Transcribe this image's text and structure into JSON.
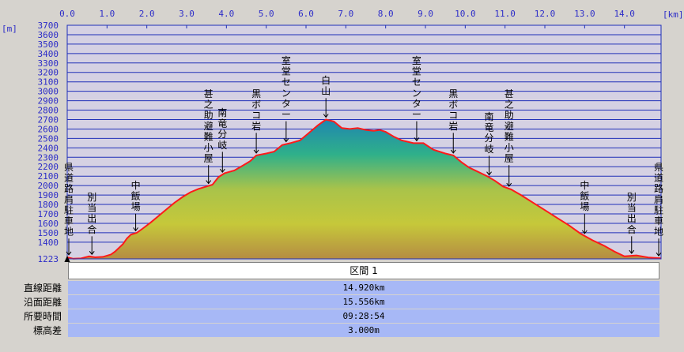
{
  "chart_data": {
    "type": "area",
    "x_unit": "[km]",
    "y_unit": "[m]",
    "xlim": [
      0,
      14.92
    ],
    "ylim": [
      1223,
      3700
    ],
    "x_ticks": [
      0.0,
      1.0,
      2.0,
      3.0,
      4.0,
      5.0,
      6.0,
      7.0,
      8.0,
      9.0,
      10.0,
      11.0,
      12.0,
      13.0,
      14.0
    ],
    "x_tick_labels": [
      "0.0",
      "1.0",
      "2.0",
      "3.0",
      "4.0",
      "5.0",
      "6.0",
      "7.0",
      "8.0",
      "9.0",
      "10.0",
      "11.0",
      "12.0",
      "13.0",
      "14.0"
    ],
    "y_ticks": [
      1223,
      1400,
      1500,
      1600,
      1700,
      1800,
      1900,
      2000,
      2100,
      2200,
      2300,
      2400,
      2500,
      2600,
      2700,
      2800,
      2900,
      3000,
      3100,
      3200,
      3300,
      3400,
      3500,
      3600,
      3700
    ],
    "y_tick_labels": [
      "1223",
      "1400",
      "1500",
      "1600",
      "1700",
      "1800",
      "1900",
      "2000",
      "2100",
      "2200",
      "2300",
      "2400",
      "2500",
      "2600",
      "2700",
      "2800",
      "2900",
      "3000",
      "3100",
      "3200",
      "3300",
      "3400",
      "3500",
      "3600",
      "3700"
    ],
    "grid": true,
    "profile": [
      [
        0.0,
        1240
      ],
      [
        0.15,
        1225
      ],
      [
        0.35,
        1228
      ],
      [
        0.55,
        1250
      ],
      [
        0.7,
        1240
      ],
      [
        0.9,
        1245
      ],
      [
        1.1,
        1270
      ],
      [
        1.2,
        1300
      ],
      [
        1.4,
        1380
      ],
      [
        1.5,
        1440
      ],
      [
        1.6,
        1480
      ],
      [
        1.75,
        1500
      ],
      [
        1.9,
        1545
      ],
      [
        2.1,
        1610
      ],
      [
        2.3,
        1680
      ],
      [
        2.5,
        1750
      ],
      [
        2.7,
        1820
      ],
      [
        2.9,
        1880
      ],
      [
        3.1,
        1930
      ],
      [
        3.3,
        1965
      ],
      [
        3.5,
        1990
      ],
      [
        3.65,
        2010
      ],
      [
        3.8,
        2090
      ],
      [
        3.95,
        2130
      ],
      [
        4.2,
        2160
      ],
      [
        4.4,
        2210
      ],
      [
        4.6,
        2260
      ],
      [
        4.75,
        2320
      ],
      [
        5.0,
        2340
      ],
      [
        5.2,
        2360
      ],
      [
        5.4,
        2430
      ],
      [
        5.6,
        2450
      ],
      [
        5.85,
        2480
      ],
      [
        6.05,
        2550
      ],
      [
        6.3,
        2640
      ],
      [
        6.5,
        2700
      ],
      [
        6.7,
        2680
      ],
      [
        6.9,
        2610
      ],
      [
        7.1,
        2600
      ],
      [
        7.3,
        2610
      ],
      [
        7.5,
        2590
      ],
      [
        7.7,
        2580
      ],
      [
        7.85,
        2590
      ],
      [
        8.0,
        2570
      ],
      [
        8.2,
        2520
      ],
      [
        8.4,
        2480
      ],
      [
        8.7,
        2450
      ],
      [
        8.95,
        2450
      ],
      [
        9.2,
        2380
      ],
      [
        9.5,
        2340
      ],
      [
        9.7,
        2320
      ],
      [
        9.9,
        2250
      ],
      [
        10.1,
        2190
      ],
      [
        10.3,
        2150
      ],
      [
        10.55,
        2100
      ],
      [
        10.75,
        2050
      ],
      [
        10.95,
        1990
      ],
      [
        11.15,
        1960
      ],
      [
        11.4,
        1900
      ],
      [
        11.7,
        1820
      ],
      [
        12.0,
        1740
      ],
      [
        12.3,
        1660
      ],
      [
        12.6,
        1580
      ],
      [
        12.9,
        1490
      ],
      [
        13.2,
        1420
      ],
      [
        13.5,
        1360
      ],
      [
        13.75,
        1300
      ],
      [
        14.0,
        1250
      ],
      [
        14.3,
        1260
      ],
      [
        14.6,
        1238
      ],
      [
        14.92,
        1230
      ]
    ],
    "annotations": [
      {
        "x": 0.0,
        "text": "県道路肩駐車地",
        "label_top": 205
      },
      {
        "x": 0.62,
        "text": "別当出合",
        "label_top": 243
      },
      {
        "x": 1.72,
        "text": "中飯場",
        "label_top": 228
      },
      {
        "x": 3.55,
        "text": "甚之助避難小屋",
        "label_top": 112
      },
      {
        "x": 3.9,
        "text": "南竜分岐",
        "label_top": 136
      },
      {
        "x": 4.75,
        "text": "黒ボコ岩",
        "label_top": 112
      },
      {
        "x": 5.5,
        "text": "室堂センター",
        "label_top": 70
      },
      {
        "x": 6.5,
        "text": "白山",
        "label_top": 95
      },
      {
        "x": 8.78,
        "text": "室堂センター",
        "label_top": 70
      },
      {
        "x": 9.7,
        "text": "黒ボコ岩",
        "label_top": 112
      },
      {
        "x": 10.6,
        "text": "南竜分岐",
        "label_top": 141
      },
      {
        "x": 11.1,
        "text": "甚之助避難小屋",
        "label_top": 112
      },
      {
        "x": 13.0,
        "text": "中飯場",
        "label_top": 228
      },
      {
        "x": 14.18,
        "text": "別当出合",
        "label_top": 243
      },
      {
        "x": 14.92,
        "text": "県道路肩駐車地",
        "label_top": 205
      }
    ],
    "colors": {
      "background": "#d6d3ce",
      "plot": "#d5d1e3",
      "grid": "#2030b8",
      "axis_text": "#2c2cc8",
      "profile_line": "#ff1a1a",
      "fill_top": "#1f86b0",
      "fill_mid": "#c6c83a",
      "fill_bottom": "#b58c43"
    }
  },
  "section": {
    "header": "区間 1"
  },
  "stats": [
    {
      "label": "直線距離",
      "value": "14.920km"
    },
    {
      "label": "沿面距離",
      "value": "15.556km"
    },
    {
      "label": "所要時間",
      "value": "09:28:54"
    },
    {
      "label": "標高差",
      "value": "3.000m"
    }
  ]
}
